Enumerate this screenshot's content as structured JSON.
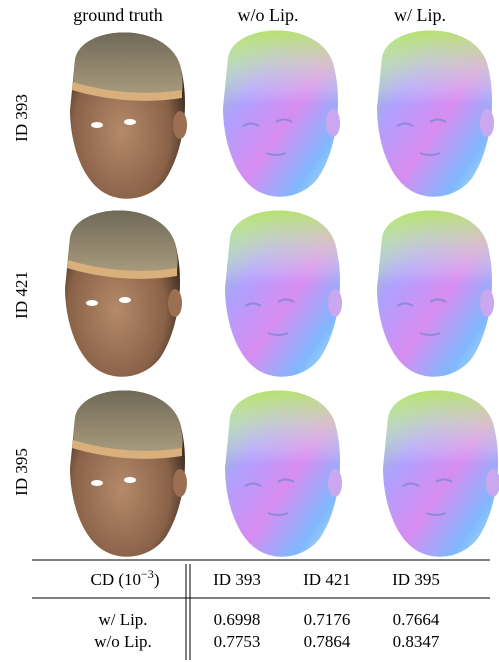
{
  "figure": {
    "columns": [
      "ground truth",
      "w/o Lip.",
      "w/ Lip."
    ],
    "rows": [
      "ID 393",
      "ID 421",
      "ID 395"
    ]
  },
  "table": {
    "header": {
      "metric": {
        "prefix": "CD (10",
        "exponent": "−3",
        "suffix": ")"
      },
      "ids": [
        "ID 393",
        "ID 421",
        "ID 395"
      ]
    },
    "rows": [
      {
        "label": "w/ Lip.",
        "values": [
          0.6998,
          0.7176,
          0.7664
        ]
      },
      {
        "label": "w/o Lip.",
        "values": [
          0.7753,
          0.7864,
          0.8347
        ]
      }
    ]
  }
}
